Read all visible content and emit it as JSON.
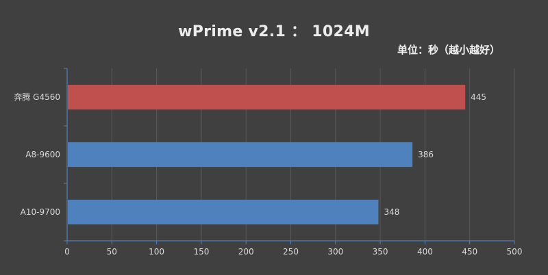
{
  "chart_data": {
    "type": "bar",
    "orientation": "horizontal",
    "title": "wPrime v2.1  ：  1024M",
    "subtitle": "单位：秒（越小越好）",
    "categories": [
      "奔腾 G4560",
      "A8-9600",
      "A10-9700"
    ],
    "values": [
      445,
      386,
      348
    ],
    "bar_colors": [
      "#c0504d",
      "#4f81bd",
      "#4f81bd"
    ],
    "xlim": [
      0,
      500
    ],
    "xticks": [
      0,
      50,
      100,
      150,
      200,
      250,
      300,
      350,
      400,
      450,
      500
    ],
    "grid": true,
    "legend": "none",
    "data_labels": true,
    "colors": {
      "background": "#404040",
      "grid": "#595959",
      "axis": "#4f81bd",
      "text": "#d9d9d9"
    }
  }
}
